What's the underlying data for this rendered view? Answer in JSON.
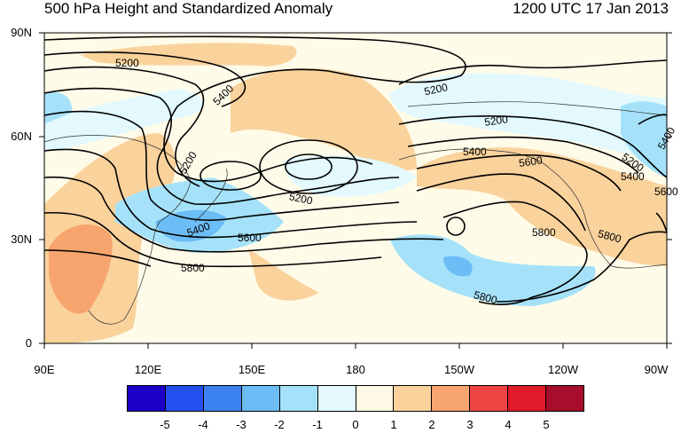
{
  "header": {
    "title": "500 hPa Height and Standardized Anomaly",
    "timestamp": "1200 UTC 17 Jan 2013"
  },
  "axes": {
    "lat_labels": [
      "90N",
      "60N",
      "30N",
      "0"
    ],
    "lon_labels": [
      "90E",
      "120E",
      "150E",
      "180",
      "150W",
      "120W",
      "90W"
    ]
  },
  "contour_labels": [
    "5200",
    "5400",
    "5200",
    "5200",
    "5400",
    "5200",
    "5200",
    "5400",
    "5600",
    "5800",
    "5200",
    "5400",
    "5600",
    "5800",
    "5400",
    "5800",
    "5600",
    "5800"
  ],
  "colorbar": {
    "labels": [
      "-5",
      "-4",
      "-3",
      "-2",
      "-1",
      "0",
      "1",
      "2",
      "3",
      "4",
      "5"
    ],
    "colors": [
      "#1c00c8",
      "#2450f0",
      "#3c82f0",
      "#6cbcf5",
      "#a5e2fa",
      "#e3f9fd",
      "#fef9e4",
      "#f9d29c",
      "#f8a46e",
      "#f04444",
      "#e01c2c",
      "#a60e2c"
    ]
  },
  "map_colors": {
    "land_outline": "#333333",
    "contour": "#000000"
  }
}
